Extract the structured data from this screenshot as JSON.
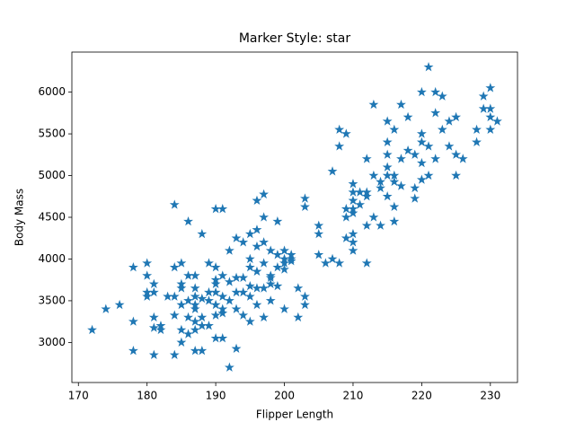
{
  "chart_data": {
    "type": "scatter",
    "title": "Marker Style: star",
    "x_label": "Flipper Length",
    "y_label": "Body Mass",
    "marker": "star",
    "color": "#1f77b4",
    "x": [
      172,
      174,
      176,
      178,
      178,
      178,
      180,
      180,
      180,
      180,
      181,
      181,
      181,
      181,
      181,
      182,
      182,
      183,
      184,
      184,
      184,
      184,
      184,
      185,
      185,
      185,
      185,
      185,
      185,
      186,
      186,
      186,
      186,
      186,
      187,
      187,
      187,
      187,
      187,
      187,
      187,
      187,
      188,
      188,
      188,
      188,
      188,
      189,
      189,
      189,
      189,
      190,
      190,
      190,
      190,
      190,
      190,
      190,
      190,
      191,
      191,
      191,
      191,
      191,
      191,
      192,
      192,
      192,
      192,
      193,
      193,
      193,
      193,
      193,
      194,
      194,
      194,
      194,
      195,
      195,
      195,
      195,
      195,
      195,
      196,
      196,
      196,
      196,
      196,
      196,
      197,
      197,
      197,
      197,
      197,
      197,
      198,
      198,
      198,
      198,
      198,
      199,
      199,
      199,
      199,
      200,
      200,
      200,
      200,
      200,
      201,
      201,
      201,
      202,
      202,
      203,
      203,
      203,
      203,
      205,
      205,
      205,
      206,
      207,
      208,
      210,
      212,
      207,
      208,
      208,
      209,
      209,
      209,
      209,
      210,
      210,
      210,
      210,
      210,
      210,
      210,
      211,
      211,
      212,
      212,
      212,
      212,
      213,
      213,
      213,
      214,
      214,
      214,
      215,
      215,
      215,
      215,
      215,
      215,
      216,
      216,
      216,
      216,
      216,
      217,
      217,
      217,
      218,
      218,
      219,
      219,
      219,
      220,
      220,
      220,
      220,
      220,
      221,
      221,
      221,
      222,
      222,
      222,
      223,
      223,
      224,
      224,
      225,
      225,
      225,
      226,
      228,
      228,
      229,
      229,
      230,
      230,
      230,
      230,
      231
    ],
    "y": [
      3150,
      3400,
      3450,
      3250,
      2900,
      3900,
      3600,
      3550,
      3950,
      3800,
      3700,
      3600,
      3300,
      2850,
      3175,
      3200,
      3150,
      3550,
      2850,
      3900,
      4650,
      3550,
      3325,
      3700,
      3650,
      3450,
      3150,
      3000,
      3950,
      3800,
      4450,
      3100,
      3500,
      3300,
      3800,
      3650,
      3250,
      3150,
      2900,
      3450,
      3550,
      3400,
      4300,
      3300,
      3525,
      3200,
      2900,
      3950,
      3600,
      3200,
      3500,
      4600,
      3900,
      3700,
      3450,
      3050,
      3600,
      3325,
      3750,
      4600,
      3800,
      3550,
      3400,
      3050,
      3350,
      2700,
      4100,
      3725,
      3500,
      4250,
      3775,
      3400,
      2925,
      3600,
      4200,
      3775,
      3600,
      3325,
      4000,
      4300,
      3550,
      3900,
      3250,
      3675,
      4700,
      4150,
      3650,
      4350,
      3450,
      3850,
      4775,
      4500,
      4200,
      3950,
      3650,
      3300,
      4100,
      3700,
      3800,
      3500,
      3775,
      4450,
      3900,
      4050,
      3675,
      4000,
      3400,
      3950,
      4100,
      3875,
      4000,
      3975,
      4050,
      3300,
      3650,
      4725,
      4625,
      3550,
      3450,
      4400,
      4300,
      4050,
      3950,
      4000,
      3950,
      4300,
      3950,
      5050,
      5350,
      5550,
      5500,
      4600,
      4500,
      4250,
      4800,
      4550,
      4900,
      4700,
      4200,
      4100,
      4600,
      4800,
      4650,
      5200,
      4800,
      4750,
      4400,
      5850,
      5000,
      4500,
      4400,
      4925,
      4850,
      5650,
      5400,
      5100,
      5000,
      4750,
      5250,
      5550,
      5000,
      4925,
      4625,
      4450,
      5850,
      4875,
      5200,
      5700,
      5300,
      5250,
      4850,
      4725,
      5500,
      5400,
      5150,
      6000,
      4950,
      5000,
      5350,
      6300,
      6000,
      5750,
      5200,
      5950,
      5550,
      5650,
      5350,
      5700,
      5250,
      5000,
      5200,
      5550,
      5400,
      5950,
      5800,
      6050,
      5800,
      5700,
      5550,
      5650
    ],
    "xlim": [
      169.05,
      233.95
    ],
    "ylim": [
      2520,
      6480
    ],
    "xticks": [
      170,
      180,
      190,
      200,
      210,
      220,
      230
    ],
    "yticks": [
      3000,
      3500,
      4000,
      4500,
      5000,
      5500,
      6000
    ]
  }
}
